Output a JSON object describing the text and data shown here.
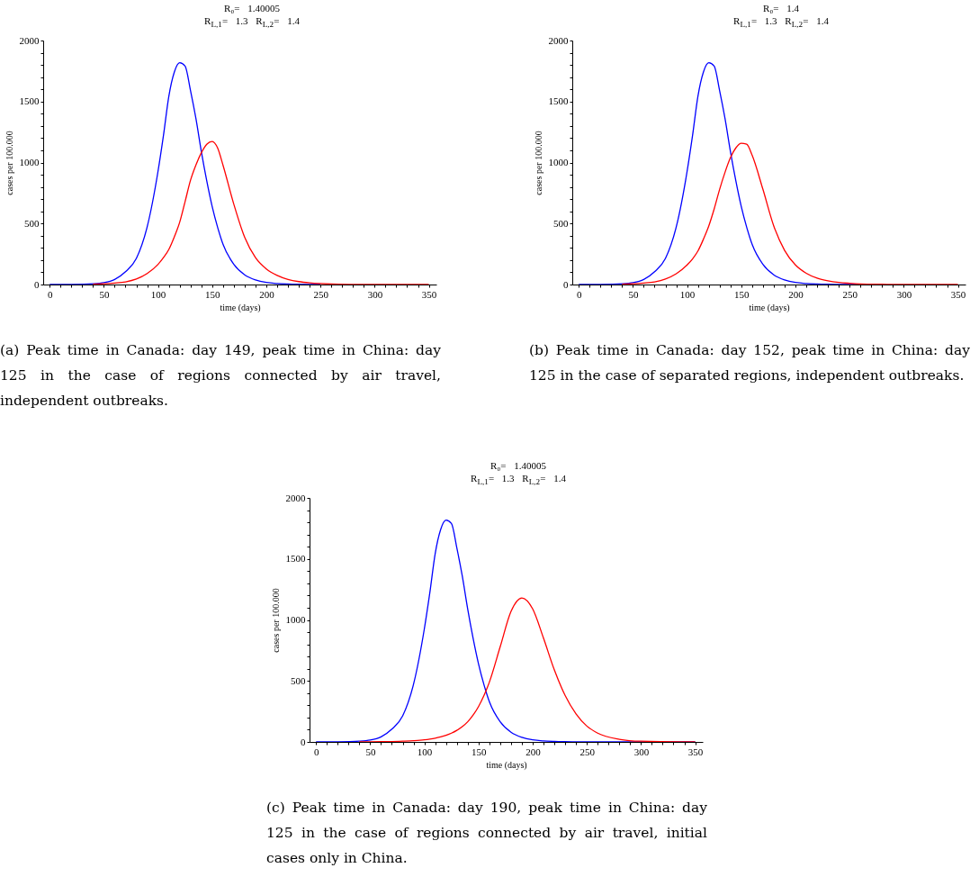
{
  "chart_data": [
    {
      "type": "line",
      "title": "R₀= 1.40005",
      "subtitle": "R$_{L,1}$= 1.3 R$_{L,2}$= 1.4",
      "xlabel": "time (days)",
      "ylabel": "cases per 100.000",
      "annotations": [
        "(a) Peak time in Canada: day 149, peak time in China: day 125 in the case of regions connected by air travel, independent outbreaks."
      ],
      "xlim": [
        -6,
        357
      ],
      "ylim": [
        0,
        2000
      ],
      "xticks": [
        0,
        {
          "value": 10,
          "label": null
        },
        {
          "value": 20,
          "label": null
        },
        {
          "value": 30,
          "label": null
        },
        {
          "value": 40,
          "label": null
        },
        50,
        {
          "value": 60,
          "label": null
        },
        {
          "value": 70,
          "label": null
        },
        {
          "value": 80,
          "label": null
        },
        {
          "value": 90,
          "label": null
        },
        100,
        {
          "value": 110,
          "label": null
        },
        {
          "value": 120,
          "label": null
        },
        {
          "value": 130,
          "label": null
        },
        {
          "value": 140,
          "label": null
        },
        150,
        {
          "value": 160,
          "label": null
        },
        {
          "value": 170,
          "label": null
        },
        {
          "value": 180,
          "label": null
        },
        {
          "value": 190,
          "label": null
        },
        200,
        {
          "value": 210,
          "label": null
        },
        {
          "value": 220,
          "label": null
        },
        {
          "value": 230,
          "label": null
        },
        {
          "value": 240,
          "label": null
        },
        250,
        {
          "value": 260,
          "label": null
        },
        {
          "value": 270,
          "label": null
        },
        {
          "value": 280,
          "label": null
        },
        {
          "value": 290,
          "label": null
        },
        300,
        {
          "value": 310,
          "label": null
        },
        {
          "value": 320,
          "label": null
        },
        {
          "value": 330,
          "label": null
        },
        {
          "value": 340,
          "label": null
        },
        350
      ],
      "yticks": [
        0,
        {
          "value": 100,
          "label": null
        },
        {
          "value": 200,
          "label": null
        },
        {
          "value": 300,
          "label": null
        },
        {
          "value": 400,
          "label": null
        },
        500,
        {
          "value": 600,
          "label": null
        },
        {
          "value": 700,
          "label": null
        },
        {
          "value": 800,
          "label": null
        },
        {
          "value": 900,
          "label": null
        },
        1000,
        {
          "value": 1100,
          "label": null
        },
        {
          "value": 1200,
          "label": null
        },
        {
          "value": 1300,
          "label": null
        },
        {
          "value": 1400,
          "label": null
        },
        1500,
        {
          "value": 1600,
          "label": null
        },
        {
          "value": 1700,
          "label": null
        },
        {
          "value": 1800,
          "label": null
        },
        {
          "value": 1900,
          "label": null
        },
        2000
      ],
      "marker": "none",
      "line_style": "solid",
      "x": [
        0,
        20,
        40,
        50,
        60,
        70,
        80,
        90,
        100,
        105,
        110,
        115,
        120,
        125,
        130,
        135,
        140,
        145,
        150,
        155,
        160,
        170,
        180,
        190,
        200,
        210,
        220,
        230,
        240,
        250,
        260,
        280,
        300,
        350
      ],
      "series": [
        {
          "color": "#0000ff",
          "values": [
            0,
            1,
            6,
            15,
            42,
            105,
            214,
            473,
            928,
            1220,
            1544,
            1740,
            1818,
            1790,
            1590,
            1360,
            1090,
            850,
            640,
            470,
            330,
            165,
            80,
            38,
            17,
            8,
            4,
            2,
            1,
            0,
            null,
            null,
            null,
            null
          ]
        },
        {
          "color": "#ff0000",
          "values": [
            null,
            null,
            3,
            6,
            12,
            22,
            45,
            90,
            165,
            220,
            288,
            390,
            510,
            680,
            855,
            980,
            1080,
            1150,
            1173,
            1120,
            978,
            658,
            387,
            220,
            128,
            75,
            42,
            24,
            14,
            8,
            4,
            1,
            0,
            0
          ]
        }
      ]
    },
    {
      "type": "line",
      "title": "R₀= 1.4",
      "subtitle": "R$_{L,1}$= 1.3 R$_{L,2}$= 1.4",
      "xlabel": "time (days)",
      "ylabel": "cases per 100.000",
      "annotations": [
        "(b) Peak time in Canada: day 152, peak time in China: day 125 in the case of separated regions, independent outbreaks."
      ],
      "xlim": [
        -6,
        357
      ],
      "ylim": [
        0,
        2000
      ],
      "xticks": [
        0,
        {
          "value": 10,
          "label": null
        },
        {
          "value": 20,
          "label": null
        },
        {
          "value": 30,
          "label": null
        },
        {
          "value": 40,
          "label": null
        },
        50,
        {
          "value": 60,
          "label": null
        },
        {
          "value": 70,
          "label": null
        },
        {
          "value": 80,
          "label": null
        },
        {
          "value": 90,
          "label": null
        },
        100,
        {
          "value": 110,
          "label": null
        },
        {
          "value": 120,
          "label": null
        },
        {
          "value": 130,
          "label": null
        },
        {
          "value": 140,
          "label": null
        },
        150,
        {
          "value": 160,
          "label": null
        },
        {
          "value": 170,
          "label": null
        },
        {
          "value": 180,
          "label": null
        },
        {
          "value": 190,
          "label": null
        },
        200,
        {
          "value": 210,
          "label": null
        },
        {
          "value": 220,
          "label": null
        },
        {
          "value": 230,
          "label": null
        },
        {
          "value": 240,
          "label": null
        },
        250,
        {
          "value": 260,
          "label": null
        },
        {
          "value": 270,
          "label": null
        },
        {
          "value": 280,
          "label": null
        },
        {
          "value": 290,
          "label": null
        },
        300,
        {
          "value": 310,
          "label": null
        },
        {
          "value": 320,
          "label": null
        },
        {
          "value": 330,
          "label": null
        },
        {
          "value": 340,
          "label": null
        },
        350
      ],
      "yticks": [
        0,
        {
          "value": 100,
          "label": null
        },
        {
          "value": 200,
          "label": null
        },
        {
          "value": 300,
          "label": null
        },
        {
          "value": 400,
          "label": null
        },
        500,
        {
          "value": 600,
          "label": null
        },
        {
          "value": 700,
          "label": null
        },
        {
          "value": 800,
          "label": null
        },
        {
          "value": 900,
          "label": null
        },
        1000,
        {
          "value": 1100,
          "label": null
        },
        {
          "value": 1200,
          "label": null
        },
        {
          "value": 1300,
          "label": null
        },
        {
          "value": 1400,
          "label": null
        },
        1500,
        {
          "value": 1600,
          "label": null
        },
        {
          "value": 1700,
          "label": null
        },
        {
          "value": 1800,
          "label": null
        },
        {
          "value": 1900,
          "label": null
        },
        2000
      ],
      "marker": "none",
      "line_style": "solid",
      "x": [
        0,
        20,
        40,
        50,
        60,
        70,
        80,
        90,
        100,
        105,
        110,
        115,
        120,
        125,
        130,
        135,
        140,
        145,
        150,
        155,
        160,
        170,
        180,
        190,
        200,
        210,
        220,
        230,
        240,
        250,
        260,
        280,
        300,
        350
      ],
      "series": [
        {
          "color": "#0000ff",
          "values": [
            0,
            1,
            6,
            15,
            42,
            105,
            214,
            473,
            928,
            1220,
            1544,
            1740,
            1818,
            1790,
            1590,
            1360,
            1090,
            850,
            640,
            470,
            330,
            165,
            80,
            38,
            17,
            8,
            4,
            2,
            1,
            0,
            0,
            null,
            null,
            null
          ]
        },
        {
          "color": "#ff0000",
          "values": [
            null,
            null,
            3,
            6,
            12,
            22,
            45,
            88,
            160,
            210,
            275,
            370,
            480,
            620,
            780,
            920,
            1040,
            1120,
            1158,
            1150,
            1060,
            780,
            480,
            280,
            160,
            92,
            52,
            30,
            17,
            10,
            5,
            2,
            0,
            0
          ]
        }
      ]
    },
    {
      "type": "line",
      "title": "R₀= 1.40005",
      "subtitle": "R$_{L,1}$= 1.3 R$_{L,2}$= 1.4",
      "xlabel": "time (days)",
      "ylabel": "cases per 100.000",
      "annotations": [
        "(c) Peak time in Canada: day 190, peak time in China: day 125 in the case of regions connected by air travel, initial cases only in China."
      ],
      "xlim": [
        -6,
        357
      ],
      "ylim": [
        0,
        2000
      ],
      "xticks": [
        0,
        {
          "value": 10,
          "label": null
        },
        {
          "value": 20,
          "label": null
        },
        {
          "value": 30,
          "label": null
        },
        {
          "value": 40,
          "label": null
        },
        50,
        {
          "value": 60,
          "label": null
        },
        {
          "value": 70,
          "label": null
        },
        {
          "value": 80,
          "label": null
        },
        {
          "value": 90,
          "label": null
        },
        100,
        {
          "value": 110,
          "label": null
        },
        {
          "value": 120,
          "label": null
        },
        {
          "value": 130,
          "label": null
        },
        {
          "value": 140,
          "label": null
        },
        150,
        {
          "value": 160,
          "label": null
        },
        {
          "value": 170,
          "label": null
        },
        {
          "value": 180,
          "label": null
        },
        {
          "value": 190,
          "label": null
        },
        200,
        {
          "value": 210,
          "label": null
        },
        {
          "value": 220,
          "label": null
        },
        {
          "value": 230,
          "label": null
        },
        {
          "value": 240,
          "label": null
        },
        250,
        {
          "value": 260,
          "label": null
        },
        {
          "value": 270,
          "label": null
        },
        {
          "value": 280,
          "label": null
        },
        {
          "value": 290,
          "label": null
        },
        300,
        {
          "value": 310,
          "label": null
        },
        {
          "value": 320,
          "label": null
        },
        {
          "value": 330,
          "label": null
        },
        {
          "value": 340,
          "label": null
        },
        350
      ],
      "yticks": [
        0,
        {
          "value": 100,
          "label": null
        },
        {
          "value": 200,
          "label": null
        },
        {
          "value": 300,
          "label": null
        },
        {
          "value": 400,
          "label": null
        },
        500,
        {
          "value": 600,
          "label": null
        },
        {
          "value": 700,
          "label": null
        },
        {
          "value": 800,
          "label": null
        },
        {
          "value": 900,
          "label": null
        },
        1000,
        {
          "value": 1100,
          "label": null
        },
        {
          "value": 1200,
          "label": null
        },
        {
          "value": 1300,
          "label": null
        },
        {
          "value": 1400,
          "label": null
        },
        1500,
        {
          "value": 1600,
          "label": null
        },
        {
          "value": 1700,
          "label": null
        },
        {
          "value": 1800,
          "label": null
        },
        {
          "value": 1900,
          "label": null
        },
        2000
      ],
      "marker": "none",
      "line_style": "solid",
      "x": [
        0,
        20,
        40,
        50,
        60,
        70,
        80,
        90,
        100,
        105,
        110,
        115,
        120,
        125,
        130,
        135,
        140,
        145,
        150,
        155,
        160,
        170,
        180,
        190,
        200,
        210,
        220,
        230,
        240,
        250,
        260,
        280,
        300,
        350
      ],
      "series": [
        {
          "color": "#0000ff",
          "values": [
            0,
            1,
            6,
            15,
            42,
            105,
            214,
            473,
            928,
            1220,
            1544,
            1740,
            1818,
            1790,
            1590,
            1360,
            1090,
            850,
            640,
            470,
            330,
            165,
            80,
            38,
            17,
            8,
            4,
            2,
            1,
            0,
            0,
            0,
            0,
            0
          ]
        },
        {
          "color": "#ff0000",
          "values": [
            null,
            null,
            0,
            1,
            2,
            3,
            6,
            10,
            17,
            23,
            31,
            42,
            55,
            72,
            95,
            125,
            165,
            220,
            290,
            380,
            490,
            780,
            1070,
            1180,
            1090,
            850,
            590,
            380,
            230,
            130,
            72,
            22,
            6,
            0
          ]
        }
      ]
    }
  ]
}
